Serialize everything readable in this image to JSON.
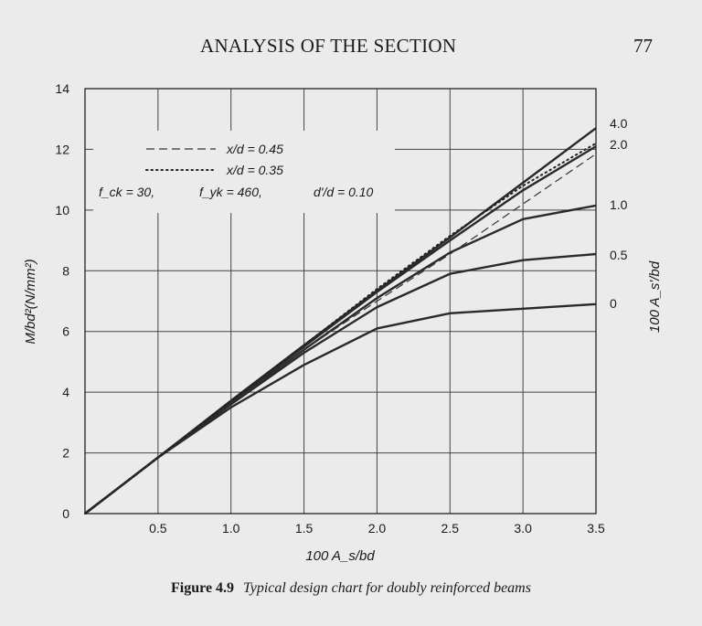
{
  "header": {
    "running_title": "ANALYSIS OF THE SECTION",
    "page_number": "77"
  },
  "caption": {
    "figure_number": "Figure 4.9",
    "text": "Typical design chart for doubly reinforced beams"
  },
  "chart_data": {
    "type": "line",
    "title": "",
    "xlabel": "100 A_s/bd",
    "ylabel": "M/bd²(N/mm²)",
    "right_axis_label": "100 A_s'/bd",
    "xlim": [
      0,
      3.5
    ],
    "ylim": [
      0,
      14
    ],
    "x_ticks": [
      {
        "v": 0.5,
        "label": "0.5"
      },
      {
        "v": 1.0,
        "label": "1.0"
      },
      {
        "v": 1.5,
        "label": "1.5"
      },
      {
        "v": 2.0,
        "label": "2.0"
      },
      {
        "v": 2.5,
        "label": "2.5"
      },
      {
        "v": 3.0,
        "label": "3.0"
      },
      {
        "v": 3.5,
        "label": "3.5"
      }
    ],
    "y_ticks": [
      {
        "v": 0,
        "label": "0"
      },
      {
        "v": 2,
        "label": "2"
      },
      {
        "v": 4,
        "label": "4"
      },
      {
        "v": 6,
        "label": "6"
      },
      {
        "v": 8,
        "label": "8"
      },
      {
        "v": 10,
        "label": "10"
      },
      {
        "v": 12,
        "label": "12"
      },
      {
        "v": 14,
        "label": "14"
      }
    ],
    "grid": true,
    "legend": {
      "entries": [
        {
          "style": "dashed",
          "label": "x/d = 0.45"
        },
        {
          "style": "dotted",
          "label": "x/d = 0.35"
        }
      ],
      "parameters": [
        "f_ck = 30,",
        "f_yk = 460,",
        "d'/d = 0.10"
      ],
      "position": "top-left"
    },
    "series": [
      {
        "name": "4.0",
        "style": "solid",
        "x": [
          0,
          0.5,
          1.0,
          1.5,
          2.0,
          2.5,
          3.0,
          3.5
        ],
        "y": [
          0,
          1.85,
          3.72,
          5.55,
          7.35,
          9.1,
          10.9,
          12.7
        ]
      },
      {
        "name": "2.0",
        "style": "solid",
        "x": [
          0,
          0.5,
          1.0,
          1.5,
          2.0,
          2.5,
          3.0,
          3.5
        ],
        "y": [
          0,
          1.85,
          3.7,
          5.5,
          7.3,
          9.0,
          10.65,
          12.1
        ]
      },
      {
        "name": "1.0",
        "style": "solid",
        "x": [
          0,
          0.5,
          1.0,
          1.5,
          2.0,
          2.5,
          3.0,
          3.5
        ],
        "y": [
          0,
          1.85,
          3.65,
          5.4,
          7.1,
          8.6,
          9.7,
          10.15
        ]
      },
      {
        "name": "0.5",
        "style": "solid",
        "x": [
          0,
          0.5,
          1.0,
          1.5,
          2.0,
          2.5,
          3.0,
          3.5
        ],
        "y": [
          0,
          1.85,
          3.6,
          5.3,
          6.8,
          7.9,
          8.35,
          8.55
        ]
      },
      {
        "name": "0",
        "style": "solid",
        "x": [
          0,
          0.5,
          1.0,
          1.5,
          2.0,
          2.5,
          3.0,
          3.5
        ],
        "y": [
          0,
          1.85,
          3.5,
          4.9,
          6.1,
          6.6,
          6.75,
          6.9
        ]
      },
      {
        "style": "dashed",
        "x": [
          0,
          0.5,
          1.0,
          1.5,
          2.0,
          2.5,
          3.0,
          3.5
        ],
        "y": [
          0,
          1.85,
          3.65,
          5.4,
          7.0,
          8.55,
          10.2,
          11.85
        ]
      },
      {
        "style": "dotted",
        "x": [
          0,
          0.5,
          1.0,
          1.5,
          2.0,
          2.5,
          3.0,
          3.5
        ],
        "y": [
          0,
          1.85,
          3.7,
          5.55,
          7.4,
          9.15,
          10.8,
          12.2
        ]
      }
    ],
    "right_labels": [
      {
        "label": "4.0",
        "y": 12.8
      },
      {
        "label": "2.0",
        "y": 12.15
      },
      {
        "label": "1.0",
        "y": 10.15
      },
      {
        "label": "0.5",
        "y": 8.55
      },
      {
        "label": "0",
        "y": 6.95
      }
    ]
  }
}
